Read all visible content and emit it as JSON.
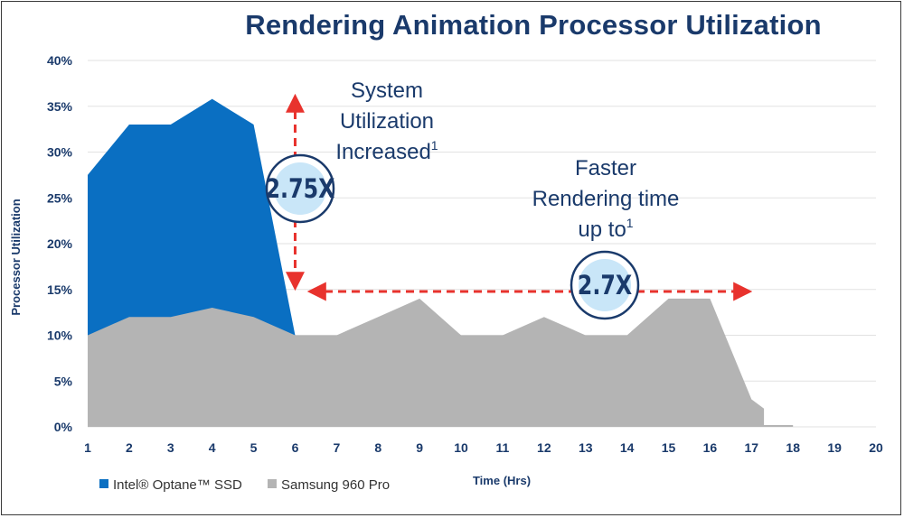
{
  "chart_data": {
    "type": "area",
    "title": "Rendering Animation Processor Utilization",
    "ylabel": "Processor Utilization",
    "xlabel": "Time (Hrs)",
    "xlim": [
      1,
      20
    ],
    "ylim": [
      0,
      40
    ],
    "x_ticks": [
      "1",
      "2",
      "3",
      "4",
      "5",
      "6",
      "7",
      "8",
      "9",
      "10",
      "11",
      "12",
      "13",
      "14",
      "15",
      "16",
      "17",
      "18",
      "19",
      "20"
    ],
    "y_ticks": [
      "0%",
      "5%",
      "10%",
      "15%",
      "20%",
      "25%",
      "30%",
      "35%",
      "40%"
    ],
    "grid": true,
    "legend_position": "bottom-left",
    "series": [
      {
        "name": "Intel® Optane™ SSD",
        "color": "#0a6fc2",
        "x": [
          1,
          2,
          3,
          4,
          5,
          6
        ],
        "y": [
          27.5,
          33,
          33,
          35.8,
          33,
          10
        ]
      },
      {
        "name": "Samsung 960 Pro",
        "color": "#b4b4b4",
        "x": [
          1,
          2,
          3,
          4,
          5,
          6,
          7,
          8,
          9,
          10,
          11,
          12,
          13,
          14,
          15,
          16,
          17,
          17.3,
          17.3,
          18
        ],
        "y": [
          10,
          12,
          12,
          13,
          12,
          10,
          10,
          12,
          14,
          10,
          10,
          12,
          10,
          10,
          14,
          14,
          3,
          2,
          0.2,
          0.2
        ]
      }
    ],
    "annotations": [
      {
        "id": "utilization",
        "lines": [
          "System",
          "Utilization",
          "Increased"
        ],
        "superscript": "1",
        "badge": "2.75X"
      },
      {
        "id": "rendering",
        "lines": [
          "Faster",
          "Rendering time",
          "up to"
        ],
        "superscript": "1",
        "badge": "2.7X"
      }
    ]
  },
  "colors": {
    "title": "#1a3a6b",
    "arrow": "#e8322d",
    "badge_fill": "#c9e6f8",
    "badge_ring": "#1a3a6b",
    "grid": "#e2e2e2"
  }
}
